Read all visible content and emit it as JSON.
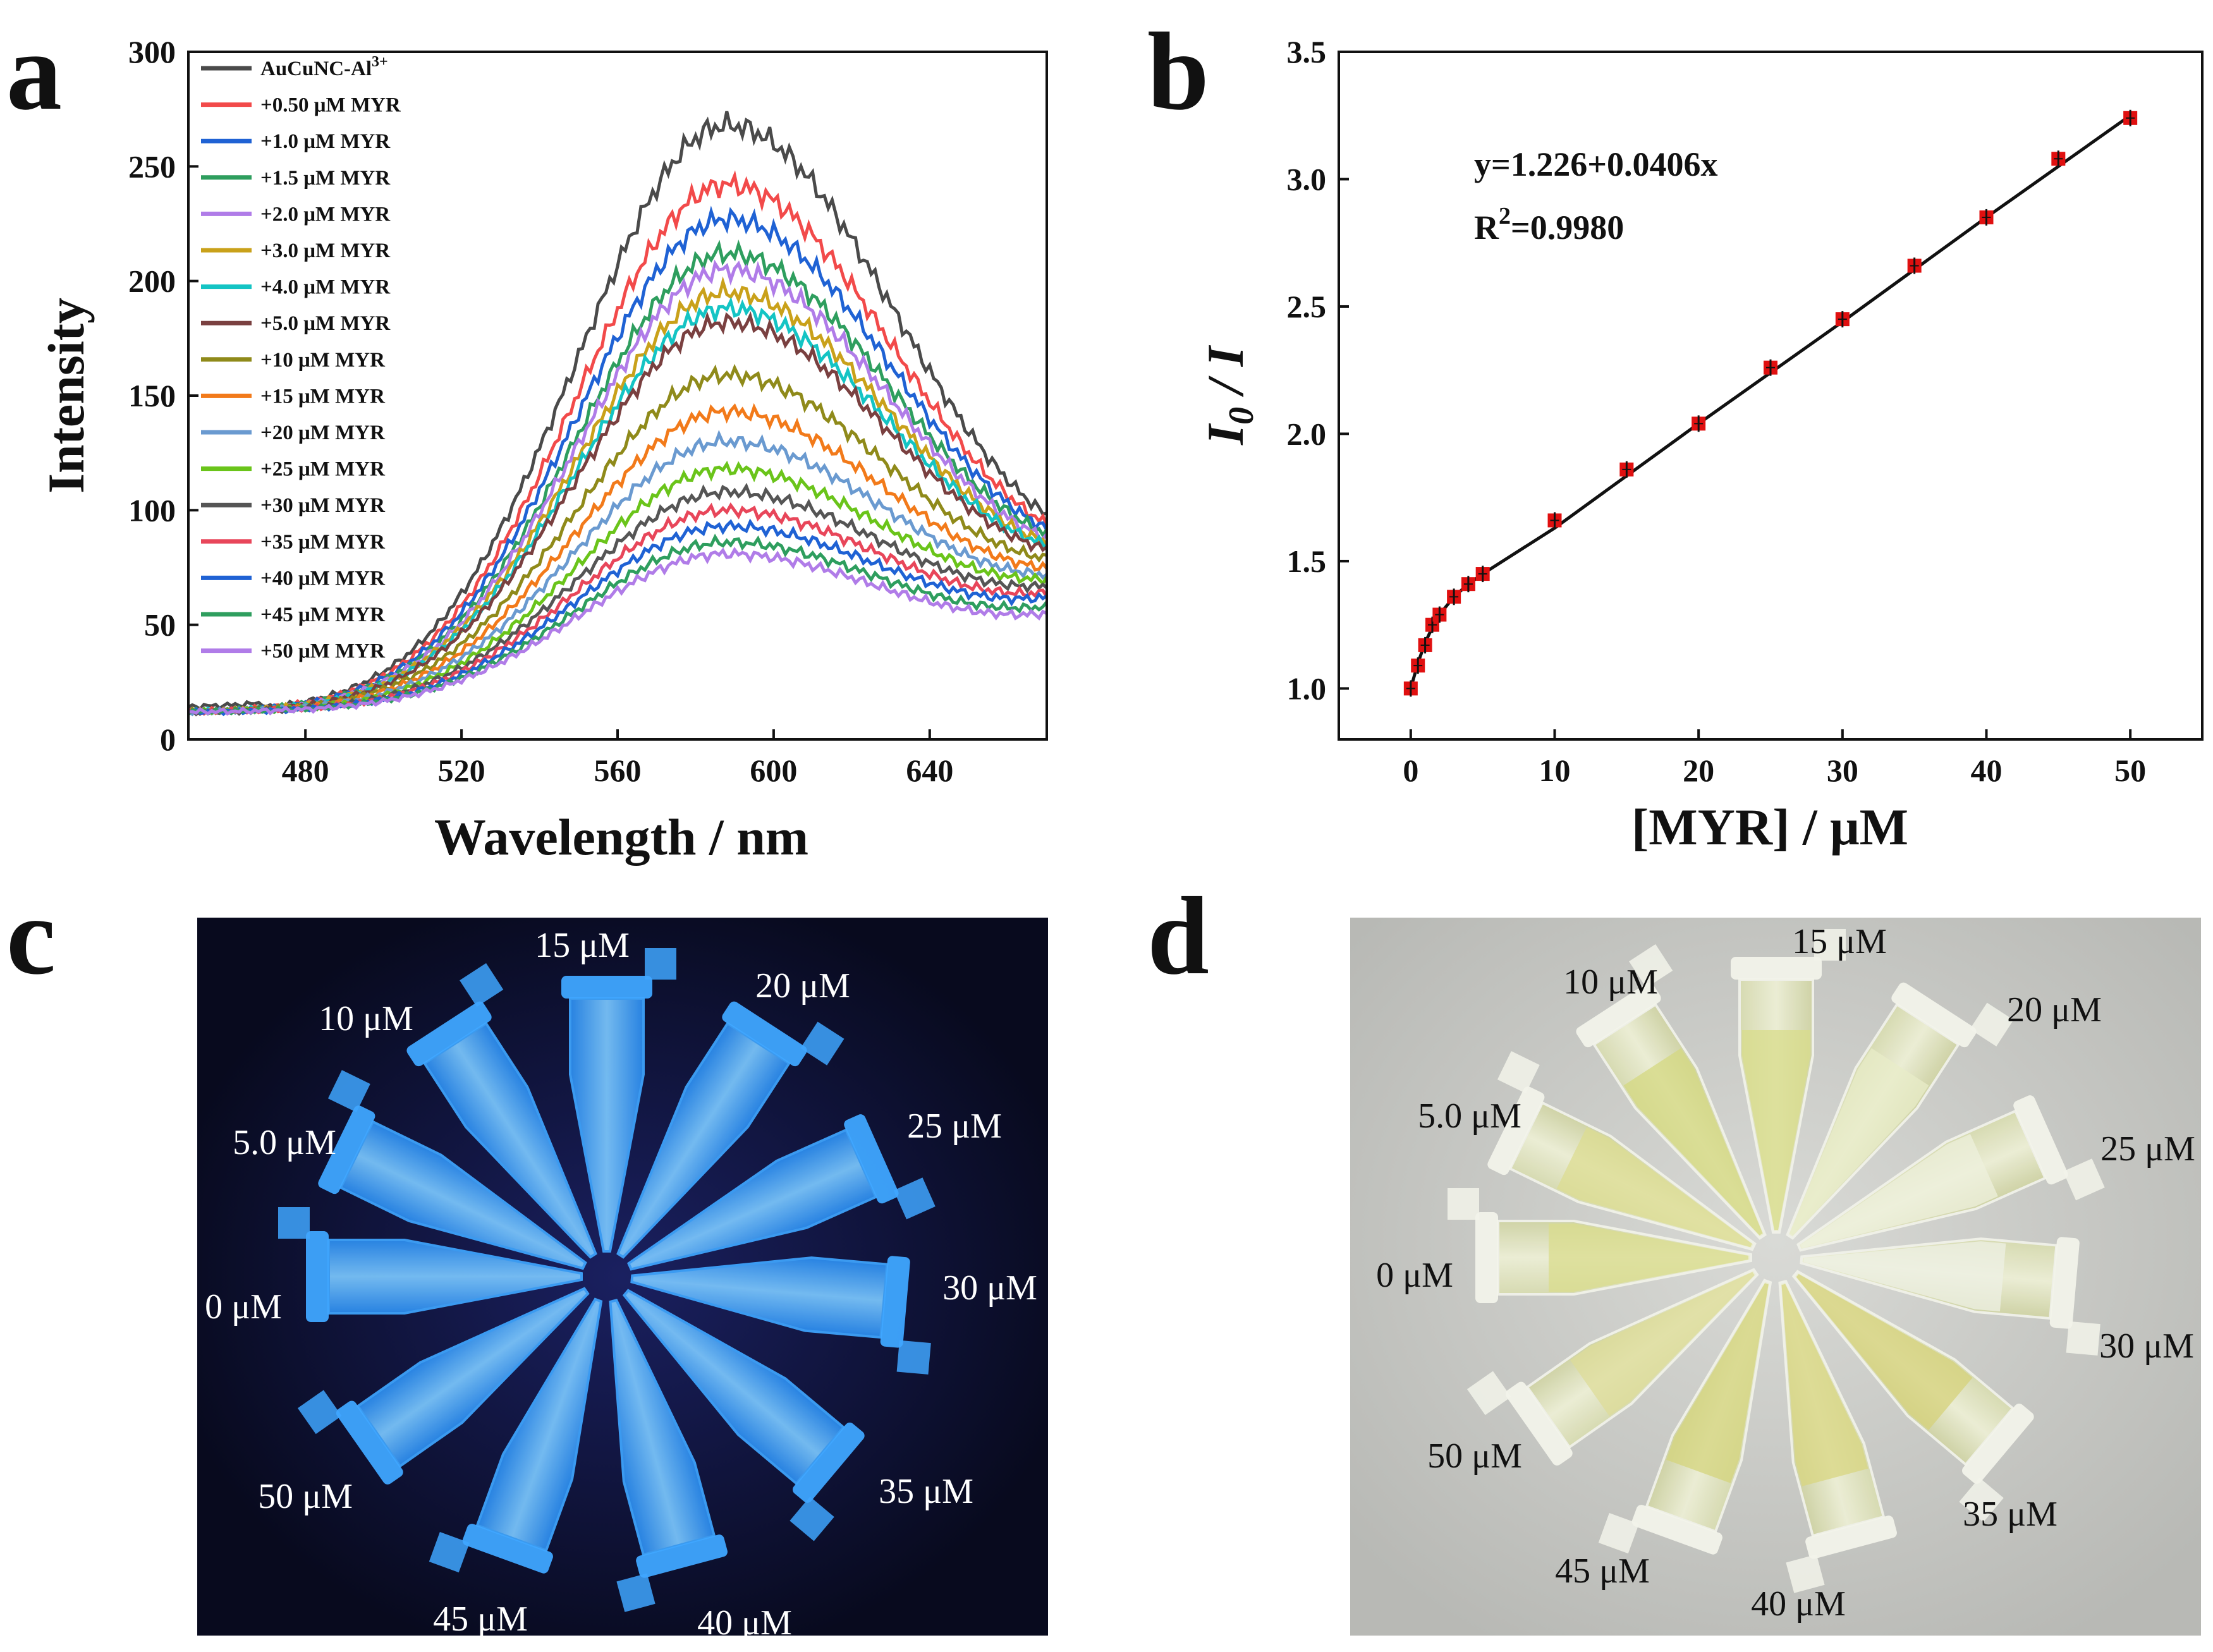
{
  "panels": {
    "a": {
      "letter": "a"
    },
    "b": {
      "letter": "b"
    },
    "c": {
      "letter": "c"
    },
    "d": {
      "letter": "d"
    }
  },
  "chart_data": [
    {
      "id": "a",
      "type": "line",
      "title": "",
      "xlabel": "Wavelength / nm",
      "ylabel": "Intensity",
      "xlim": [
        450,
        670
      ],
      "ylim": [
        0,
        300
      ],
      "xticks": [
        480,
        520,
        560,
        600,
        640
      ],
      "yticks": [
        0,
        50,
        100,
        150,
        200,
        250,
        300
      ],
      "legend_position": "top-left",
      "peak_wavelength": 588,
      "series": [
        {
          "name": "AuCuNC-Al",
          "name_sup": "3+",
          "color": "#4a4a4a",
          "peak": 268,
          "end": 98
        },
        {
          "name": "+0.50 μM MYR",
          "color": "#f24a4a",
          "peak": 242,
          "end": 94
        },
        {
          "name": "+1.0 μM MYR",
          "color": "#1f62d4",
          "peak": 227,
          "end": 92
        },
        {
          "name": "+1.5 μM MYR",
          "color": "#2e9e5e",
          "peak": 212,
          "end": 90
        },
        {
          "name": "+2.0 μM MYR",
          "color": "#b07ce8",
          "peak": 205,
          "end": 88
        },
        {
          "name": "+3.0 μM MYR",
          "color": "#c9a11a",
          "peak": 195,
          "end": 86
        },
        {
          "name": "+4.0 μM MYR",
          "color": "#14c4c4",
          "peak": 188,
          "end": 85
        },
        {
          "name": "+5.0 μM MYR",
          "color": "#7a4040",
          "peak": 182,
          "end": 83
        },
        {
          "name": "+10 μM MYR",
          "color": "#8f8a1a",
          "peak": 159,
          "end": 79
        },
        {
          "name": "+15 μM MYR",
          "color": "#f27a1a",
          "peak": 143,
          "end": 75
        },
        {
          "name": "+20 μM MYR",
          "color": "#6a9ad0",
          "peak": 130,
          "end": 72
        },
        {
          "name": "+25 μM MYR",
          "color": "#6ac41a",
          "peak": 118,
          "end": 70
        },
        {
          "name": "+30 μM MYR",
          "color": "#555555",
          "peak": 108,
          "end": 67
        },
        {
          "name": "+35 μM MYR",
          "color": "#e8465a",
          "peak": 100,
          "end": 64
        },
        {
          "name": "+40 μM MYR",
          "color": "#1f62d4",
          "peak": 93,
          "end": 62
        },
        {
          "name": "+45 μM MYR",
          "color": "#2e9e5e",
          "peak": 86,
          "end": 58
        },
        {
          "name": "+50 μM MYR",
          "color": "#b07ce8",
          "peak": 81,
          "end": 55
        }
      ]
    },
    {
      "id": "b",
      "type": "scatter",
      "title": "",
      "xlabel": "[MYR] / μM",
      "ylabel": "I0 / I",
      "ylabel_main": "I",
      "ylabel_sub": "0",
      "ylabel_rest": " / I",
      "xlim": [
        -5,
        55
      ],
      "ylim": [
        0.8,
        3.5
      ],
      "xticks": [
        0,
        10,
        20,
        30,
        40,
        50
      ],
      "yticks": [
        1.0,
        1.5,
        2.0,
        2.5,
        3.0,
        3.5
      ],
      "x": [
        0,
        0.5,
        1.0,
        1.5,
        2.0,
        3.0,
        4.0,
        5.0,
        10,
        15,
        20,
        25,
        30,
        35,
        40,
        45,
        50
      ],
      "y": [
        1.0,
        1.09,
        1.17,
        1.25,
        1.29,
        1.36,
        1.41,
        1.45,
        1.66,
        1.86,
        2.04,
        2.26,
        2.45,
        2.66,
        2.85,
        3.08,
        3.24
      ],
      "fit_curve_x": [
        0,
        0.5,
        1.0,
        1.5,
        2.0,
        3.0,
        4.0,
        5.0,
        10,
        20,
        30,
        40,
        50
      ],
      "fit_curve_y": [
        1.0,
        1.1,
        1.18,
        1.24,
        1.29,
        1.36,
        1.41,
        1.45,
        1.63,
        2.04,
        2.44,
        2.85,
        3.25
      ],
      "annotation_equation": "y=1.226+0.0406x",
      "annotation_r2_prefix": "R",
      "annotation_r2_sup": "2",
      "annotation_r2_value": "=0.9980",
      "marker_color": "#e01010"
    }
  ],
  "photo_c": {
    "labels": [
      "15 μM",
      "20 μM",
      "10 μM",
      "25 μM",
      "5.0 μM",
      "30 μM",
      "0 μM",
      "35 μM",
      "50 μM",
      "45 μM",
      "40 μM"
    ],
    "background": "#0c1030",
    "tube_color": "#3ea8ff"
  },
  "photo_d": {
    "labels": [
      "15 μM",
      "10 μM",
      "20 μM",
      "5.0 μM",
      "25 μM",
      "0 μM",
      "30 μM",
      "50 μM",
      "35 μM",
      "45 μM",
      "40 μM"
    ],
    "background": "#c9cac6",
    "tube_color": "#e6e8c4"
  }
}
